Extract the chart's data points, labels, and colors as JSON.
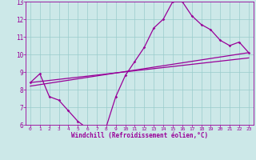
{
  "xlabel": "Windchill (Refroidissement éolien,°C)",
  "background_color": "#cce8e8",
  "line_color": "#990099",
  "grid_color": "#99cccc",
  "xlim": [
    -0.5,
    23.5
  ],
  "ylim": [
    6,
    13
  ],
  "xticks": [
    0,
    1,
    2,
    3,
    4,
    5,
    6,
    7,
    8,
    9,
    10,
    11,
    12,
    13,
    14,
    15,
    16,
    17,
    18,
    19,
    20,
    21,
    22,
    23
  ],
  "yticks": [
    6,
    7,
    8,
    9,
    10,
    11,
    12,
    13
  ],
  "line1_x": [
    0,
    1,
    2,
    3,
    4,
    5,
    6,
    7,
    8,
    9,
    10,
    11,
    12,
    13,
    14,
    15,
    16,
    17,
    18,
    19,
    20,
    21,
    22,
    23
  ],
  "line1_y": [
    8.4,
    8.9,
    7.6,
    7.4,
    6.8,
    6.2,
    5.8,
    5.7,
    5.9,
    7.6,
    8.8,
    9.6,
    10.4,
    11.5,
    12.0,
    13.0,
    13.0,
    12.2,
    11.7,
    11.4,
    10.8,
    10.5,
    10.7,
    10.1
  ],
  "line2_x": [
    0,
    23
  ],
  "line2_y": [
    8.2,
    10.1
  ],
  "line3_x": [
    0,
    23
  ],
  "line3_y": [
    8.4,
    9.8
  ]
}
